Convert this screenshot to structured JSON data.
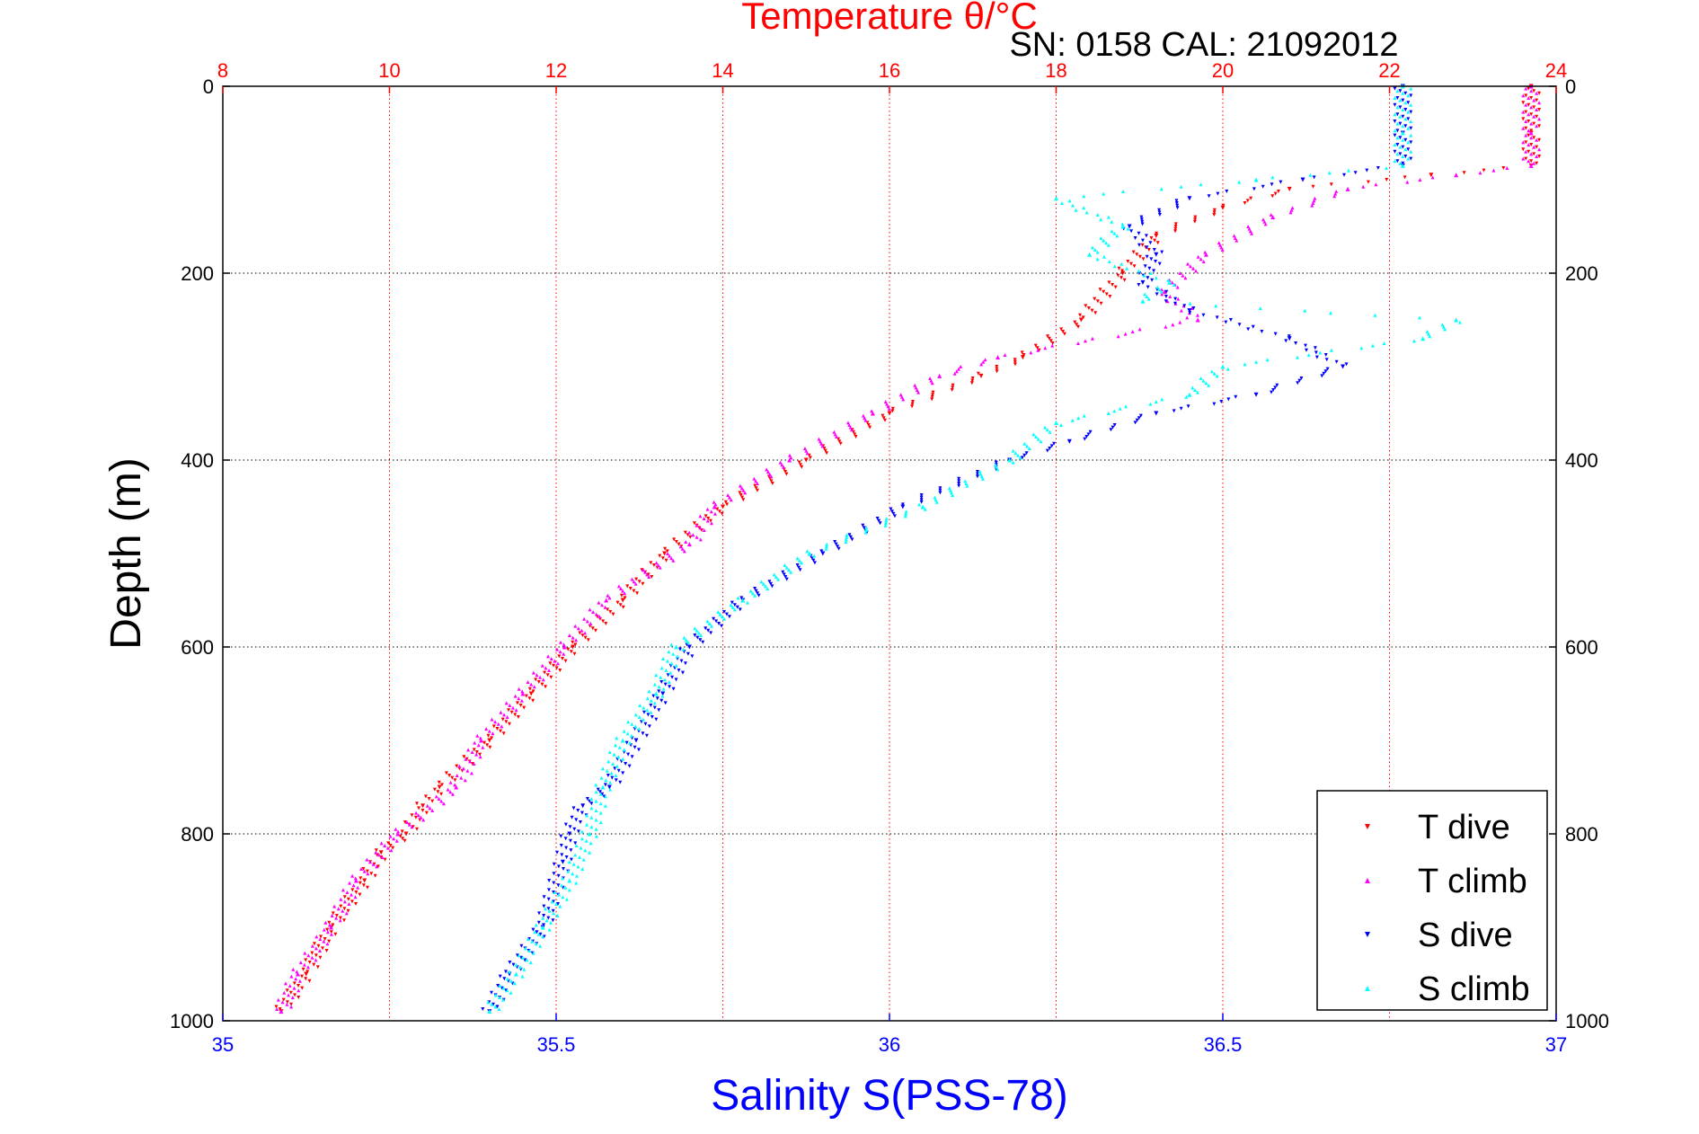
{
  "chart_data": {
    "type": "scatter",
    "title": "Temperature θ/°C",
    "subtitle": "SN: 0158  CAL: 21092012",
    "xlabel": "Salinity S(PSS-78)",
    "ylabel": "Depth (m)",
    "xlim_salinity": [
      35,
      37
    ],
    "xlim_temperature": [
      8,
      24
    ],
    "ylim": [
      0,
      1000
    ],
    "y_reversed": true,
    "grid": true,
    "legend_position": "bottom-right",
    "temperature_ticks": [
      "8",
      "10",
      "12",
      "14",
      "16",
      "18",
      "20",
      "22",
      "24"
    ],
    "salinity_ticks": [
      "35",
      "35.5",
      "36",
      "36.5",
      "37"
    ],
    "depth_ticks": [
      "0",
      "200",
      "400",
      "600",
      "800",
      "1000"
    ],
    "series": [
      {
        "name": "T dive",
        "axis": "temperature",
        "color": "#ff0000",
        "marker": "triangle-down",
        "depth": [
          0,
          50,
          85,
          95,
          110,
          130,
          160,
          200,
          250,
          290,
          310,
          350,
          400,
          450,
          500,
          550,
          600,
          650,
          700,
          750,
          770,
          800,
          820,
          850,
          900,
          950,
          990
        ],
        "values": [
          23.7,
          23.7,
          23.7,
          22.5,
          20.8,
          20.0,
          19.2,
          18.8,
          18.3,
          17.6,
          17.1,
          16.0,
          15.0,
          14.0,
          13.3,
          12.8,
          12.2,
          11.7,
          11.2,
          10.6,
          10.4,
          10.2,
          9.9,
          9.7,
          9.3,
          9.0,
          8.7
        ]
      },
      {
        "name": "T climb",
        "axis": "temperature",
        "color": "#ff00ff",
        "marker": "triangle-up",
        "depth": [
          0,
          50,
          85,
          95,
          110,
          140,
          180,
          220,
          250,
          290,
          310,
          350,
          400,
          450,
          490,
          550,
          600,
          650,
          700,
          750,
          800,
          850,
          900,
          950,
          990
        ],
        "values": [
          23.7,
          23.7,
          23.7,
          22.8,
          21.5,
          20.6,
          19.8,
          19.3,
          19.7,
          17.3,
          16.6,
          15.8,
          14.8,
          13.9,
          13.6,
          12.6,
          12.1,
          11.6,
          11.1,
          10.8,
          10.1,
          9.6,
          9.3,
          8.9,
          8.7
        ]
      },
      {
        "name": "S dive",
        "axis": "salinity",
        "color": "#0000ff",
        "marker": "triangle-down",
        "depth": [
          0,
          50,
          85,
          100,
          120,
          150,
          180,
          210,
          240,
          270,
          300,
          330,
          350,
          380,
          400,
          450,
          500,
          550,
          600,
          650,
          700,
          750,
          770,
          800,
          830,
          900,
          950,
          990
        ],
        "values": [
          36.77,
          36.77,
          36.77,
          36.62,
          36.45,
          36.36,
          36.4,
          36.38,
          36.45,
          36.6,
          36.68,
          36.55,
          36.4,
          36.27,
          36.18,
          36.02,
          35.9,
          35.78,
          35.7,
          35.66,
          35.62,
          35.58,
          35.54,
          35.52,
          35.51,
          35.48,
          35.43,
          35.4
        ]
      },
      {
        "name": "S climb",
        "axis": "salinity",
        "color": "#00ffff",
        "marker": "triangle-up",
        "depth": [
          0,
          50,
          85,
          100,
          120,
          150,
          180,
          210,
          230,
          250,
          270,
          300,
          330,
          360,
          400,
          450,
          500,
          550,
          600,
          650,
          700,
          750,
          800,
          850,
          900,
          950,
          990
        ],
        "values": [
          36.77,
          36.77,
          36.77,
          36.55,
          36.25,
          36.35,
          36.3,
          36.42,
          36.38,
          36.85,
          36.8,
          36.5,
          36.45,
          36.25,
          36.18,
          36.05,
          35.88,
          35.78,
          35.68,
          35.65,
          35.6,
          35.57,
          35.55,
          35.52,
          35.48,
          35.44,
          35.4
        ]
      }
    ]
  }
}
